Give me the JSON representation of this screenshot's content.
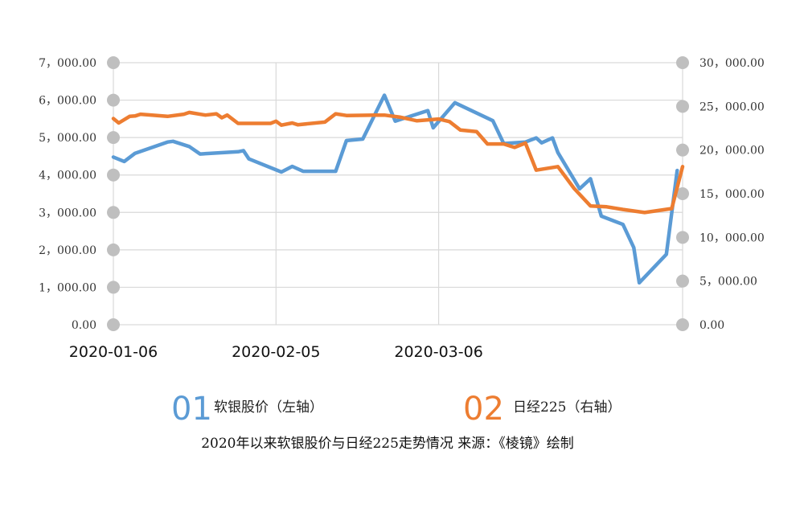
{
  "chart_data": {
    "type": "line",
    "x_tick_labels": [
      "2020-01-06",
      "2020-02-05",
      "2020-03-06"
    ],
    "y_left": {
      "ticks": [
        "0.00",
        "1，000.00",
        "2，000.00",
        "3，000.00",
        "4，000.00",
        "5，000.00",
        "6，000.00",
        "7，000.00"
      ],
      "ylim": [
        0,
        7000
      ]
    },
    "y_right": {
      "ticks": [
        "0.00",
        "5，000.00",
        "10，000.00",
        "15，000.00",
        "20，000.00",
        "25，000.00",
        "30，000.00"
      ],
      "ylim": [
        0,
        30000
      ]
    },
    "grid": true,
    "series": [
      {
        "name": "软银股价（左轴）",
        "legend_number": "01",
        "axis": "left",
        "color": "#5b9bd5",
        "points": [
          [
            "2020-01-06",
            4480
          ],
          [
            "2020-01-08",
            4360
          ],
          [
            "2020-01-10",
            4580
          ],
          [
            "2020-01-16",
            4880
          ],
          [
            "2020-01-17",
            4900
          ],
          [
            "2020-01-20",
            4760
          ],
          [
            "2020-01-22",
            4560
          ],
          [
            "2020-01-29",
            4620
          ],
          [
            "2020-01-30",
            4650
          ],
          [
            "2020-01-31",
            4430
          ],
          [
            "2020-02-06",
            4080
          ],
          [
            "2020-02-08",
            4230
          ],
          [
            "2020-02-10",
            4100
          ],
          [
            "2020-02-16",
            4100
          ],
          [
            "2020-02-18",
            4920
          ],
          [
            "2020-02-21",
            4960
          ],
          [
            "2020-02-25",
            6130
          ],
          [
            "2020-02-27",
            5440
          ],
          [
            "2020-03-04",
            5720
          ],
          [
            "2020-03-05",
            5260
          ],
          [
            "2020-03-09",
            5930
          ],
          [
            "2020-03-16",
            5450
          ],
          [
            "2020-03-18",
            4840
          ],
          [
            "2020-03-22",
            4880
          ],
          [
            "2020-03-24",
            4990
          ],
          [
            "2020-03-25",
            4860
          ],
          [
            "2020-03-27",
            4990
          ],
          [
            "2020-03-28",
            4600
          ],
          [
            "2020-04-01",
            3630
          ],
          [
            "2020-04-03",
            3900
          ],
          [
            "2020-04-05",
            2900
          ],
          [
            "2020-04-09",
            2680
          ],
          [
            "2020-04-11",
            2060
          ],
          [
            "2020-04-12",
            1120
          ],
          [
            "2020-04-17",
            1880
          ],
          [
            "2020-04-19",
            4120
          ]
        ]
      },
      {
        "name": "日经225（右轴）",
        "legend_number": "02",
        "axis": "right",
        "color": "#ed7d31",
        "points": [
          [
            "2020-01-06",
            23600
          ],
          [
            "2020-01-07",
            23100
          ],
          [
            "2020-01-09",
            23850
          ],
          [
            "2020-01-10",
            23900
          ],
          [
            "2020-01-11",
            24100
          ],
          [
            "2020-01-16",
            23850
          ],
          [
            "2020-01-19",
            24100
          ],
          [
            "2020-01-20",
            24300
          ],
          [
            "2020-01-23",
            24000
          ],
          [
            "2020-01-25",
            24150
          ],
          [
            "2020-01-26",
            23700
          ],
          [
            "2020-01-27",
            24000
          ],
          [
            "2020-01-29",
            23050
          ],
          [
            "2020-02-04",
            23050
          ],
          [
            "2020-02-05",
            23300
          ],
          [
            "2020-02-06",
            22850
          ],
          [
            "2020-02-08",
            23100
          ],
          [
            "2020-02-09",
            22900
          ],
          [
            "2020-02-14",
            23200
          ],
          [
            "2020-02-16",
            24150
          ],
          [
            "2020-02-18",
            23950
          ],
          [
            "2020-02-23",
            24000
          ],
          [
            "2020-02-25",
            24000
          ],
          [
            "2020-02-28",
            23750
          ],
          [
            "2020-03-02",
            23350
          ],
          [
            "2020-03-06",
            23550
          ],
          [
            "2020-03-08",
            23250
          ],
          [
            "2020-03-10",
            22300
          ],
          [
            "2020-03-13",
            22100
          ],
          [
            "2020-03-15",
            20700
          ],
          [
            "2020-03-18",
            20700
          ],
          [
            "2020-03-20",
            20300
          ],
          [
            "2020-03-22",
            20800
          ],
          [
            "2020-03-24",
            17700
          ],
          [
            "2020-03-28",
            18100
          ],
          [
            "2020-03-31",
            15600
          ],
          [
            "2020-04-03",
            13600
          ],
          [
            "2020-04-06",
            13500
          ],
          [
            "2020-04-09",
            13200
          ],
          [
            "2020-04-13",
            12850
          ],
          [
            "2020-04-18",
            13300
          ],
          [
            "2020-04-20",
            18100
          ]
        ]
      }
    ],
    "caption": "2020年以来软银股价与日经225走势情况 来源：《棱镜》绘制"
  }
}
